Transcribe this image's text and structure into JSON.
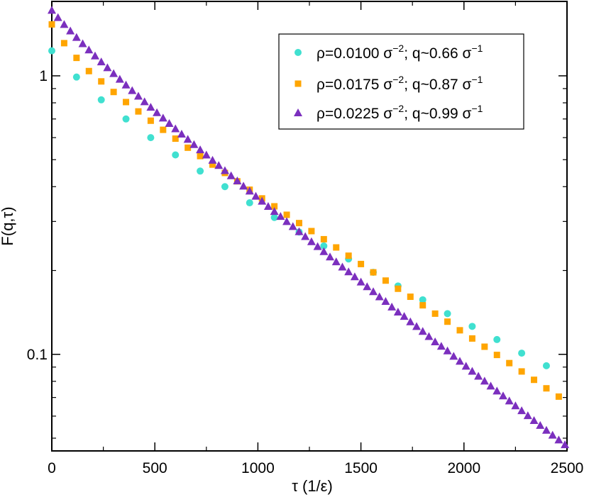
{
  "chart_data": {
    "type": "scatter",
    "title": "",
    "xlabel": "τ  (1/ε)",
    "ylabel": "F(q,τ)",
    "x_scale": "linear",
    "y_scale": "log",
    "xlim": [
      0,
      2500
    ],
    "ylim": [
      0.045,
      1.85
    ],
    "x_ticks": [
      0,
      500,
      1000,
      1500,
      2000,
      2500
    ],
    "x_tick_labels": [
      "0",
      "500",
      "1000",
      "1500",
      "2000",
      "2500"
    ],
    "y_ticks": [
      0.1,
      1
    ],
    "y_tick_labels": [
      "0.1",
      "1"
    ],
    "grid": false,
    "legend_position": "top-right",
    "series": [
      {
        "name": "ρ=0.0100 σ−2; q~0.66 σ−1",
        "legend": {
          "base": "ρ=0.0100 σ",
          "exp1": "−2",
          "mid": "; q~0.66 σ",
          "exp2": "−1"
        },
        "marker": "circle",
        "color": "#40e0d0",
        "x": [
          0,
          120,
          240,
          360,
          480,
          600,
          720,
          840,
          960,
          1080,
          1200,
          1320,
          1440,
          1560,
          1680,
          1800,
          1920,
          2040,
          2160,
          2280,
          2400
        ],
        "y": [
          1.23,
          0.99,
          0.82,
          0.7,
          0.6,
          0.52,
          0.455,
          0.4,
          0.35,
          0.31,
          0.275,
          0.245,
          0.22,
          0.197,
          0.176,
          0.157,
          0.14,
          0.126,
          0.113,
          0.101,
          0.091
        ]
      },
      {
        "name": "ρ=0.0175 σ−2; q~0.87 σ−1",
        "legend": {
          "base": "ρ=0.0175 σ",
          "exp1": "−2",
          "mid": "; q~0.87 σ",
          "exp2": "−1"
        },
        "marker": "square",
        "color": "#ffa500",
        "x": [
          0,
          60,
          120,
          180,
          240,
          300,
          360,
          420,
          480,
          540,
          600,
          660,
          720,
          780,
          840,
          900,
          960,
          1020,
          1080,
          1140,
          1200,
          1260,
          1320,
          1380,
          1440,
          1500,
          1560,
          1620,
          1680,
          1740,
          1800,
          1860,
          1920,
          1980,
          2040,
          2100,
          2160,
          2220,
          2280,
          2340,
          2400,
          2460
        ],
        "y": [
          1.53,
          1.31,
          1.16,
          1.04,
          0.955,
          0.875,
          0.805,
          0.745,
          0.69,
          0.64,
          0.595,
          0.552,
          0.515,
          0.48,
          0.448,
          0.418,
          0.39,
          0.363,
          0.34,
          0.317,
          0.296,
          0.277,
          0.259,
          0.242,
          0.226,
          0.211,
          0.197,
          0.184,
          0.172,
          0.161,
          0.15,
          0.14,
          0.131,
          0.122,
          0.114,
          0.1065,
          0.0995,
          0.093,
          0.0868,
          0.081,
          0.0755,
          0.0705
        ]
      },
      {
        "name": "ρ=0.0225 σ−2; q~0.99 σ−1",
        "legend": {
          "base": "ρ=0.0225 σ",
          "exp1": "−2",
          "mid": "; q~0.99 σ",
          "exp2": "−1"
        },
        "marker": "triangle",
        "color": "#7b2fbe",
        "x": [
          0,
          30,
          60,
          90,
          120,
          150,
          180,
          210,
          240,
          270,
          300,
          330,
          360,
          390,
          420,
          450,
          480,
          510,
          540,
          570,
          600,
          630,
          660,
          690,
          720,
          750,
          780,
          810,
          840,
          870,
          900,
          930,
          960,
          990,
          1020,
          1050,
          1080,
          1110,
          1140,
          1170,
          1200,
          1230,
          1260,
          1290,
          1320,
          1350,
          1380,
          1410,
          1440,
          1470,
          1500,
          1530,
          1560,
          1590,
          1620,
          1650,
          1680,
          1710,
          1740,
          1770,
          1800,
          1830,
          1860,
          1890,
          1920,
          1950,
          1980,
          2010,
          2040,
          2070,
          2100,
          2130,
          2160,
          2190,
          2220,
          2250,
          2280,
          2310,
          2340,
          2370,
          2400,
          2430,
          2460,
          2490
        ],
        "y": [
          1.72,
          1.62,
          1.53,
          1.45,
          1.375,
          1.305,
          1.24,
          1.18,
          1.123,
          1.07,
          1.02,
          0.973,
          0.928,
          0.886,
          0.846,
          0.808,
          0.772,
          0.738,
          0.706,
          0.675,
          0.646,
          0.618,
          0.592,
          0.567,
          0.543,
          0.52,
          0.498,
          0.477,
          0.457,
          0.438,
          0.42,
          0.402,
          0.386,
          0.37,
          0.355,
          0.34,
          0.326,
          0.313,
          0.3,
          0.288,
          0.276,
          0.265,
          0.254,
          0.244,
          0.234,
          0.224,
          0.215,
          0.206,
          0.198,
          0.19,
          0.182,
          0.175,
          0.168,
          0.161,
          0.155,
          0.148,
          0.142,
          0.137,
          0.131,
          0.126,
          0.121,
          0.116,
          0.111,
          0.107,
          0.103,
          0.0985,
          0.0945,
          0.0907,
          0.087,
          0.0835,
          0.0802,
          0.077,
          0.0739,
          0.071,
          0.0681,
          0.0654,
          0.0628,
          0.0603,
          0.0579,
          0.0556,
          0.0534,
          0.0513,
          0.0493,
          0.0474
        ]
      }
    ]
  }
}
